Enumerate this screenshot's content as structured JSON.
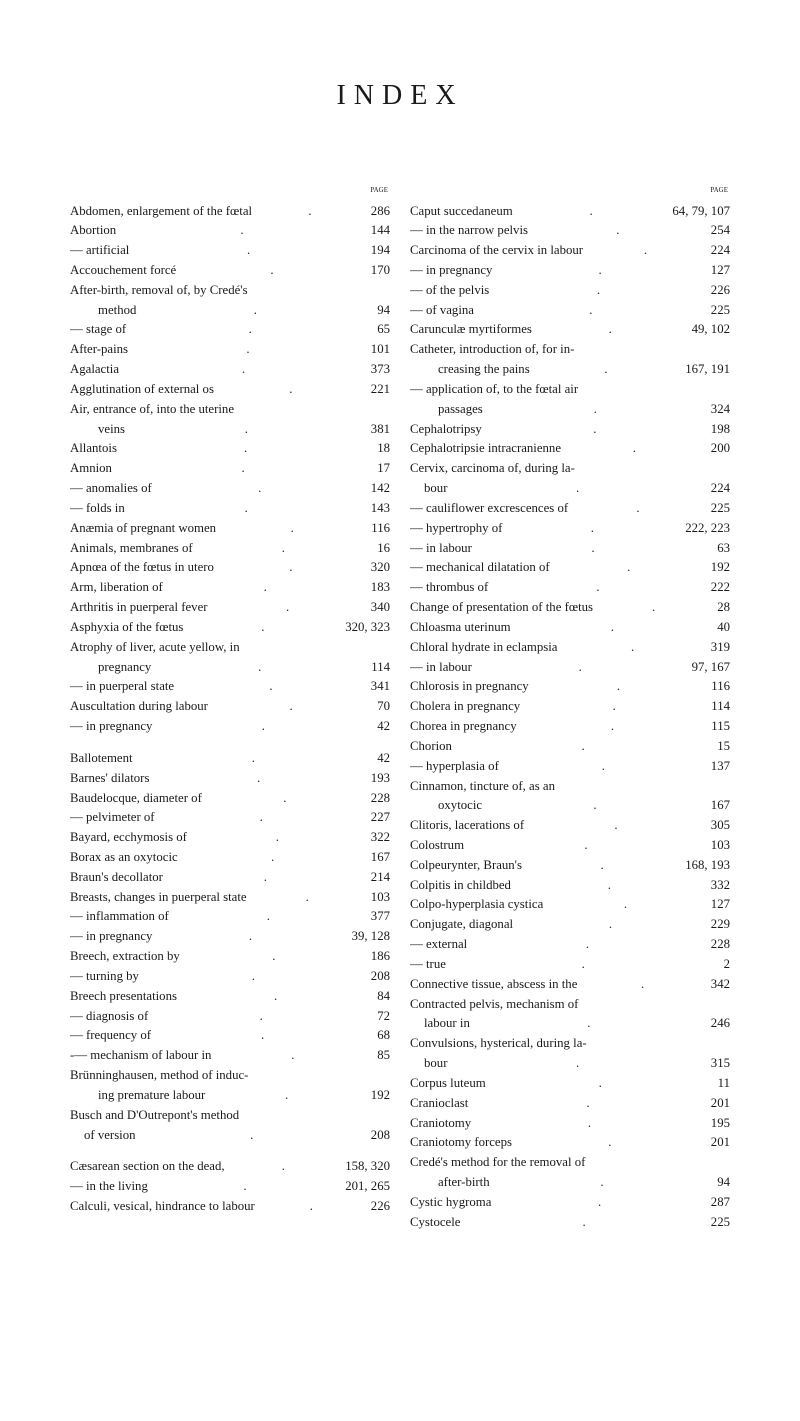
{
  "title": "INDEX",
  "pageHeader": "page",
  "colors": {
    "background": "#ffffff",
    "text": "#1a1a1a"
  },
  "typography": {
    "title_fontsize": 28,
    "title_letterspacing": 8,
    "body_fontsize": 12.8,
    "line_height": 1.55,
    "font_family": "Times New Roman"
  },
  "leftColumn": [
    {
      "label": "Abdomen, enlargement of the fœtal",
      "page": "286"
    },
    {
      "label": "Abortion",
      "page": "144"
    },
    {
      "label": "— artificial",
      "page": "194"
    },
    {
      "label": "Accouchement forcé",
      "page": "170"
    },
    {
      "label": "After-birth, removal of, by Credé's",
      "page": ""
    },
    {
      "label": "method",
      "page": "94",
      "indent": 2
    },
    {
      "label": "— stage of",
      "page": "65"
    },
    {
      "label": "After-pains",
      "page": "101"
    },
    {
      "label": "Agalactia",
      "page": "373"
    },
    {
      "label": "Agglutination of external os",
      "page": "221"
    },
    {
      "label": "Air, entrance of, into the uterine",
      "page": ""
    },
    {
      "label": "veins",
      "page": "381",
      "indent": 2
    },
    {
      "label": "Allantois",
      "page": "18"
    },
    {
      "label": "Amnion",
      "page": "17"
    },
    {
      "label": "— anomalies of",
      "page": "142"
    },
    {
      "label": "— folds in",
      "page": "143"
    },
    {
      "label": "Anæmia of pregnant women",
      "page": "116"
    },
    {
      "label": "Animals, membranes of",
      "page": "16"
    },
    {
      "label": "Apnœa of the fœtus in utero",
      "page": "320"
    },
    {
      "label": "Arm, liberation of",
      "page": "183"
    },
    {
      "label": "Arthritis in puerperal fever",
      "page": "340"
    },
    {
      "label": "Asphyxia of the fœtus",
      "page": "320, 323"
    },
    {
      "label": "Atrophy of liver, acute yellow, in",
      "page": ""
    },
    {
      "label": "pregnancy",
      "page": "114",
      "indent": 2
    },
    {
      "label": "— in puerperal state",
      "page": "341"
    },
    {
      "label": "Auscultation during labour",
      "page": "70"
    },
    {
      "label": "— in pregnancy",
      "page": "42"
    },
    {
      "spacer": true
    },
    {
      "label": "Ballotement",
      "page": "42"
    },
    {
      "label": "Barnes' dilators",
      "page": "193"
    },
    {
      "label": "Baudelocque, diameter of",
      "page": "228"
    },
    {
      "label": "— pelvimeter of",
      "page": "227"
    },
    {
      "label": "Bayard, ecchymosis of",
      "page": "322"
    },
    {
      "label": "Borax as an oxytocic",
      "page": "167"
    },
    {
      "label": "Braun's decollator",
      "page": "214"
    },
    {
      "label": "Breasts, changes in puerperal state",
      "page": "103"
    },
    {
      "label": "— inflammation of",
      "page": "377"
    },
    {
      "label": "— in pregnancy",
      "page": "39, 128"
    },
    {
      "label": "Breech, extraction by",
      "page": "186"
    },
    {
      "label": "— turning by",
      "page": "208"
    },
    {
      "label": "Breech presentations",
      "page": "84"
    },
    {
      "label": "— diagnosis of",
      "page": "72"
    },
    {
      "label": "— frequency of",
      "page": "68"
    },
    {
      "label": "-— mechanism of labour in",
      "page": "85"
    },
    {
      "label": "Brünninghausen, method of induc-",
      "page": ""
    },
    {
      "label": "ing premature labour",
      "page": "192",
      "indent": 2
    },
    {
      "label": "Busch and D'Outrepont's method",
      "page": ""
    },
    {
      "label": "of version",
      "page": "208",
      "indent": 1
    },
    {
      "spacer": true
    },
    {
      "label": "Cæsarean section on the dead,",
      "page": "158, 320"
    },
    {
      "label": "— in the living",
      "page": "201, 265"
    },
    {
      "label": "Calculi, vesical, hindrance to labour",
      "page": "226"
    }
  ],
  "rightColumn": [
    {
      "label": "Caput succedaneum",
      "page": "64, 79, 107"
    },
    {
      "label": "— in the narrow pelvis",
      "page": "254"
    },
    {
      "label": "Carcinoma of the cervix in labour",
      "page": "224"
    },
    {
      "label": "— in pregnancy",
      "page": "127"
    },
    {
      "label": "— of the pelvis",
      "page": "226"
    },
    {
      "label": "— of vagina",
      "page": "225"
    },
    {
      "label": "Carunculæ myrtiformes",
      "page": "49, 102"
    },
    {
      "label": "Catheter, introduction of, for in-",
      "page": ""
    },
    {
      "label": "creasing the pains",
      "page": "167, 191",
      "indent": 2
    },
    {
      "label": "— application of, to the fœtal air",
      "page": ""
    },
    {
      "label": "passages",
      "page": "324",
      "indent": 2
    },
    {
      "label": "Cephalotripsy",
      "page": "198"
    },
    {
      "label": "Cephalotripsie intracranienne",
      "page": "200"
    },
    {
      "label": "Cervix, carcinoma of, during la-",
      "page": ""
    },
    {
      "label": "bour",
      "page": "224",
      "indent": 1
    },
    {
      "label": "— cauliflower excrescences of",
      "page": "225"
    },
    {
      "label": "— hypertrophy of",
      "page": "222, 223"
    },
    {
      "label": "— in labour",
      "page": "63"
    },
    {
      "label": "— mechanical dilatation of",
      "page": "192"
    },
    {
      "label": "— thrombus of",
      "page": "222"
    },
    {
      "label": "Change of presentation of the fœtus",
      "page": "28"
    },
    {
      "label": "Chloasma uterinum",
      "page": "40"
    },
    {
      "label": "Chloral hydrate in eclampsia",
      "page": "319"
    },
    {
      "label": "— in labour",
      "page": "97, 167"
    },
    {
      "label": "Chlorosis in pregnancy",
      "page": "116"
    },
    {
      "label": "Cholera in pregnancy",
      "page": "114"
    },
    {
      "label": "Chorea in pregnancy",
      "page": "115"
    },
    {
      "label": "Chorion",
      "page": "15"
    },
    {
      "label": "— hyperplasia of",
      "page": "137"
    },
    {
      "label": "Cinnamon, tincture of, as an",
      "page": ""
    },
    {
      "label": "oxytocic",
      "page": "167",
      "indent": 2
    },
    {
      "label": "Clitoris, lacerations of",
      "page": "305"
    },
    {
      "label": "Colostrum",
      "page": "103"
    },
    {
      "label": "Colpeurynter, Braun's",
      "page": "168, 193"
    },
    {
      "label": "Colpitis in childbed",
      "page": "332"
    },
    {
      "label": "Colpo-hyperplasia cystica",
      "page": "127"
    },
    {
      "label": "Conjugate, diagonal",
      "page": "229"
    },
    {
      "label": "— external",
      "page": "228"
    },
    {
      "label": "— true",
      "page": "2"
    },
    {
      "label": "Connective tissue, abscess in the",
      "page": "342"
    },
    {
      "label": "Contracted pelvis, mechanism of",
      "page": ""
    },
    {
      "label": "labour in",
      "page": "246",
      "indent": 1
    },
    {
      "label": "Convulsions, hysterical, during la-",
      "page": ""
    },
    {
      "label": "bour",
      "page": "315",
      "indent": 1
    },
    {
      "label": "Corpus luteum",
      "page": "11"
    },
    {
      "label": "Cranioclast",
      "page": "201"
    },
    {
      "label": "Craniotomy",
      "page": "195"
    },
    {
      "label": "Craniotomy forceps",
      "page": "201"
    },
    {
      "label": "Credé's method for the removal of",
      "page": ""
    },
    {
      "label": "after-birth",
      "page": "94",
      "indent": 2
    },
    {
      "label": "Cystic hygroma",
      "page": "287"
    },
    {
      "label": "Cystocele",
      "page": "225"
    }
  ]
}
